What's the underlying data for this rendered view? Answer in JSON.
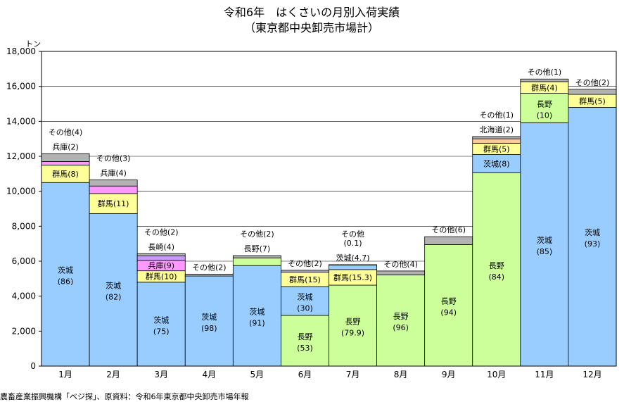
{
  "chart_data": {
    "type": "bar",
    "stacked": true,
    "title": "令和6年　はくさいの月別入荷実績",
    "subtitle": "（東京都中央卸売市場計）",
    "ylabel": "トン",
    "xlabel": "",
    "ylim": [
      0,
      18000
    ],
    "yticks": [
      0,
      2000,
      4000,
      6000,
      8000,
      10000,
      12000,
      14000,
      16000,
      18000
    ],
    "ytick_labels": [
      "0",
      "2,000",
      "4,000",
      "6,000",
      "8,000",
      "10,000",
      "12,000",
      "14,000",
      "16,000",
      "18,000"
    ],
    "categories": [
      "1月",
      "2月",
      "3月",
      "4月",
      "5月",
      "6月",
      "7月",
      "8月",
      "9月",
      "10月",
      "11月",
      "12月"
    ],
    "colors": {
      "茨城": "#99ccff",
      "長野": "#ccff99",
      "群馬": "#ffff99",
      "兵庫": "#ff99ff",
      "長崎": "#cc99ff",
      "北海道": "#ffcc99",
      "その他": "#b2b2b2",
      "border": "#000000"
    },
    "months": [
      {
        "segments": [
          {
            "name": "茨城",
            "value": 10500,
            "label": "茨城",
            "pct": "(86)",
            "pos": "inside"
          },
          {
            "name": "群馬",
            "value": 1000,
            "label": "群馬(8)",
            "pos": "inside"
          },
          {
            "name": "兵庫",
            "value": 200,
            "label": "兵庫(2)",
            "pos": "above"
          },
          {
            "name": "その他",
            "value": 450,
            "label": "その他(4)",
            "pos": "above"
          }
        ]
      },
      {
        "segments": [
          {
            "name": "茨城",
            "value": 8720,
            "label": "茨城",
            "pct": "(82)",
            "pos": "inside"
          },
          {
            "name": "群馬",
            "value": 1150,
            "label": "群馬(11)",
            "pos": "inside"
          },
          {
            "name": "兵庫",
            "value": 430,
            "label": "兵庫(4)",
            "pos": "above"
          },
          {
            "name": "その他",
            "value": 350,
            "label": "その他(3)",
            "pos": "above"
          }
        ]
      },
      {
        "segments": [
          {
            "name": "茨城",
            "value": 4800,
            "label": "茨城",
            "pct": "(75)",
            "pos": "inside"
          },
          {
            "name": "群馬",
            "value": 650,
            "label": "群馬(10)",
            "pos": "inside"
          },
          {
            "name": "兵庫",
            "value": 600,
            "label": "兵庫(9)",
            "pos": "inside"
          },
          {
            "name": "長崎",
            "value": 250,
            "label": "長崎(4)",
            "pos": "above"
          },
          {
            "name": "その他",
            "value": 130,
            "label": "その他(2)",
            "pos": "above"
          }
        ]
      },
      {
        "segments": [
          {
            "name": "茨城",
            "value": 5150,
            "label": "茨城",
            "pct": "(98)",
            "pos": "inside"
          },
          {
            "name": "その他",
            "value": 110,
            "label": "その他(2)",
            "pos": "above"
          }
        ]
      },
      {
        "segments": [
          {
            "name": "茨城",
            "value": 5750,
            "label": "茨城",
            "pct": "(91)",
            "pos": "inside"
          },
          {
            "name": "長野",
            "value": 440,
            "label": "長野(7)",
            "pos": "above"
          },
          {
            "name": "その他",
            "value": 130,
            "label": "その他(2)",
            "pos": "above"
          }
        ]
      },
      {
        "segments": [
          {
            "name": "長野",
            "value": 2900,
            "label": "長野",
            "pct": "(53)",
            "pos": "inside"
          },
          {
            "name": "茨城",
            "value": 1650,
            "label": "茨城",
            "pct": "(30)",
            "pos": "inside"
          },
          {
            "name": "群馬",
            "value": 820,
            "label": "群馬(15)",
            "pos": "inside"
          },
          {
            "name": "その他",
            "value": 110,
            "label": "その他(2)",
            "pos": "above"
          }
        ]
      },
      {
        "segments": [
          {
            "name": "長野",
            "value": 4630,
            "label": "長野",
            "pct": "(79.9)",
            "pos": "inside"
          },
          {
            "name": "群馬",
            "value": 890,
            "label": "群馬(15.3)",
            "pos": "inside"
          },
          {
            "name": "茨城",
            "value": 270,
            "label": "茨城(4.7)",
            "pos": "above"
          },
          {
            "name": "その他",
            "value": 10,
            "label": "その他",
            "pct": "(0.1)",
            "pos": "above"
          }
        ]
      },
      {
        "segments": [
          {
            "name": "長野",
            "value": 5220,
            "label": "長野",
            "pct": "(96)",
            "pos": "inside"
          },
          {
            "name": "その他",
            "value": 220,
            "label": "その他(4)",
            "pos": "above"
          }
        ]
      },
      {
        "segments": [
          {
            "name": "長野",
            "value": 6950,
            "label": "長野",
            "pct": "(94)",
            "pos": "inside"
          },
          {
            "name": "その他",
            "value": 450,
            "label": "その他(6)",
            "pos": "above"
          }
        ]
      },
      {
        "segments": [
          {
            "name": "長野",
            "value": 11050,
            "label": "長野",
            "pct": "(84)",
            "pos": "inside"
          },
          {
            "name": "茨城",
            "value": 1050,
            "label": "茨城(8)",
            "pos": "inside"
          },
          {
            "name": "群馬",
            "value": 650,
            "label": "群馬(5)",
            "pos": "inside"
          },
          {
            "name": "北海道",
            "value": 250,
            "label": "北海道(2)",
            "pos": "above"
          },
          {
            "name": "その他",
            "value": 130,
            "label": "その他(1)",
            "pos": "above"
          }
        ]
      },
      {
        "segments": [
          {
            "name": "茨城",
            "value": 13920,
            "label": "茨城",
            "pct": "(85)",
            "pos": "inside"
          },
          {
            "name": "長野",
            "value": 1680,
            "label": "長野",
            "pct": "(10)",
            "pos": "inside"
          },
          {
            "name": "群馬",
            "value": 670,
            "label": "群馬(4)",
            "pos": "inside"
          },
          {
            "name": "その他",
            "value": 150,
            "label": "その他(1)",
            "pos": "above"
          }
        ]
      },
      {
        "segments": [
          {
            "name": "茨城",
            "value": 14800,
            "label": "茨城",
            "pct": "(93)",
            "pos": "inside"
          },
          {
            "name": "群馬",
            "value": 740,
            "label": "群馬(5)",
            "pos": "inside"
          },
          {
            "name": "その他",
            "value": 290,
            "label": "その他(2)",
            "pos": "above"
          }
        ]
      }
    ]
  },
  "source": "農畜産業振興機構「ベジ探」、原資料：令和6年東京都中央卸売市場年報"
}
